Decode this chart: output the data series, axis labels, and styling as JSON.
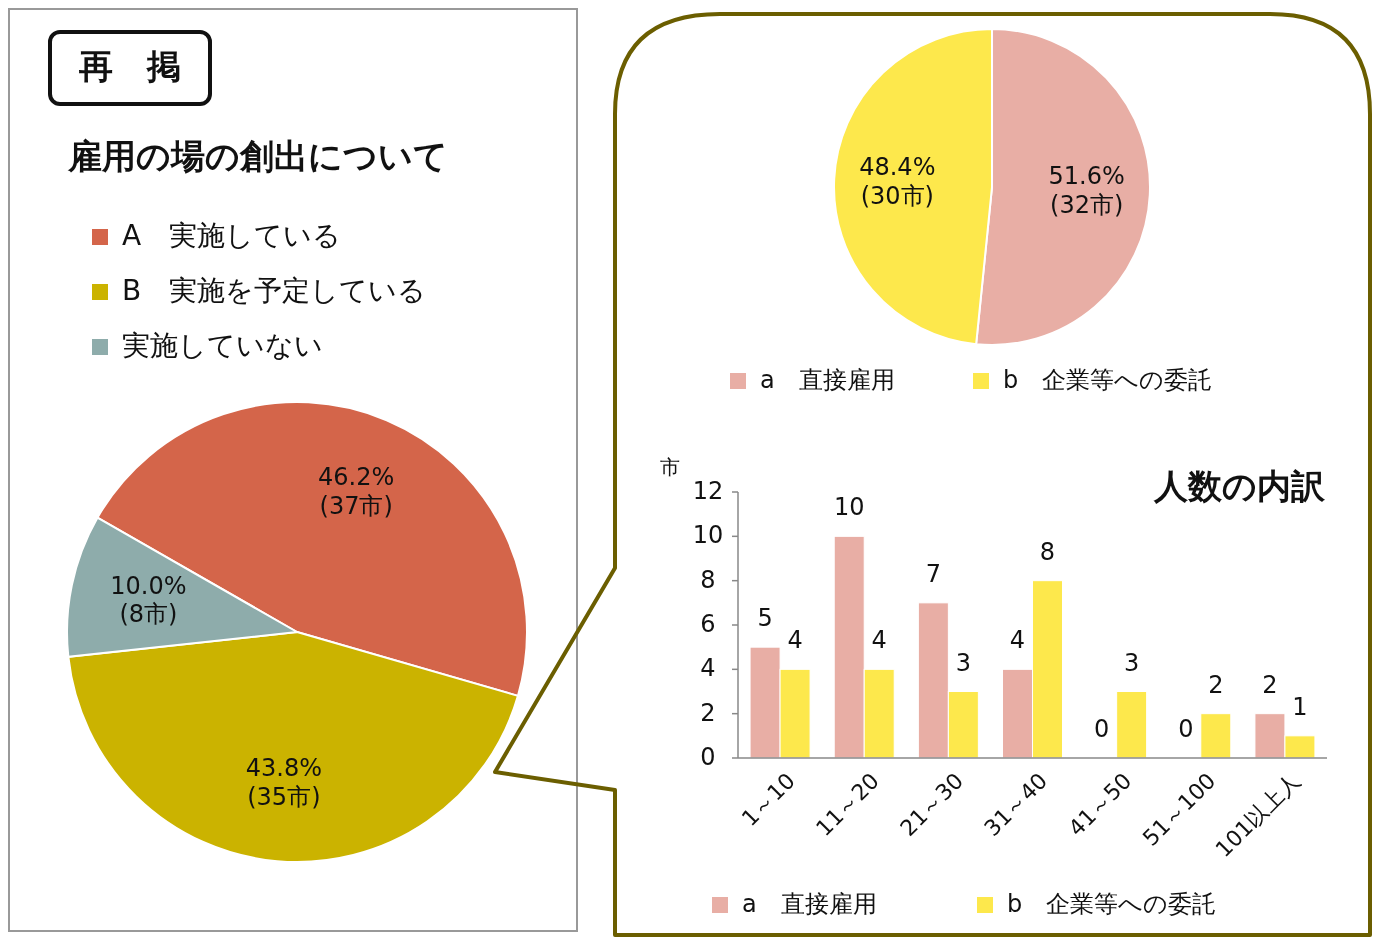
{
  "chart_data": [
    {
      "type": "pie",
      "title": "雇用の場の創出について",
      "annotations": [
        "再　掲"
      ],
      "categories": [
        "A　実施している",
        "B　実施を予定している",
        "実施していない"
      ],
      "values": [
        46.2,
        43.8,
        10.0
      ],
      "value_labels": [
        "46.2%\n(37市)",
        "43.8%\n(35市)",
        "10.0%\n(8市)"
      ],
      "colors": [
        "#d4654a",
        "#cbb300",
        "#8eacab"
      ],
      "legend": "top"
    },
    {
      "type": "pie",
      "categories": [
        "a　直接雇用",
        "b　企業等への委託"
      ],
      "values": [
        51.6,
        48.4
      ],
      "value_labels": [
        "51.6%\n(32市)",
        "48.4%\n(30市)"
      ],
      "colors": [
        "#e8aea5",
        "#fde84c"
      ],
      "legend": "bottom"
    },
    {
      "type": "bar",
      "title": "人数の内訳",
      "ylabel": "市",
      "categories": [
        "1～10",
        "11～20",
        "21～30",
        "31～40",
        "41～50",
        "51～100",
        "101以上人"
      ],
      "series": [
        {
          "name": "a　直接雇用",
          "color": "#e8aea5",
          "values": [
            5,
            10,
            7,
            4,
            0,
            0,
            2
          ]
        },
        {
          "name": "b　企業等への委託",
          "color": "#fde84c",
          "values": [
            4,
            4,
            3,
            8,
            3,
            2,
            1
          ]
        }
      ],
      "ylim": [
        0,
        12
      ],
      "yticks": [
        0,
        2,
        4,
        6,
        8,
        10,
        12
      ],
      "data_labels": true,
      "legend": "bottom"
    }
  ]
}
